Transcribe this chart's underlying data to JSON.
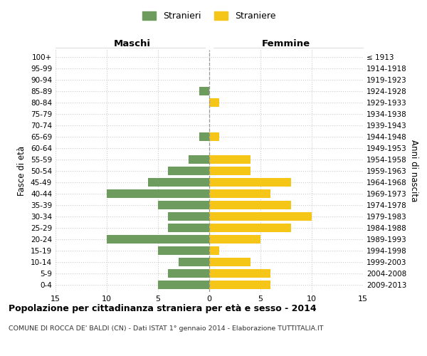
{
  "age_groups": [
    "0-4",
    "5-9",
    "10-14",
    "15-19",
    "20-24",
    "25-29",
    "30-34",
    "35-39",
    "40-44",
    "45-49",
    "50-54",
    "55-59",
    "60-64",
    "65-69",
    "70-74",
    "75-79",
    "80-84",
    "85-89",
    "90-94",
    "95-99",
    "100+"
  ],
  "birth_years": [
    "2009-2013",
    "2004-2008",
    "1999-2003",
    "1994-1998",
    "1989-1993",
    "1984-1988",
    "1979-1983",
    "1974-1978",
    "1969-1973",
    "1964-1968",
    "1959-1963",
    "1954-1958",
    "1949-1953",
    "1944-1948",
    "1939-1943",
    "1934-1938",
    "1929-1933",
    "1924-1928",
    "1919-1923",
    "1914-1918",
    "≤ 1913"
  ],
  "males": [
    5,
    4,
    3,
    5,
    10,
    4,
    4,
    5,
    10,
    6,
    4,
    2,
    0,
    1,
    0,
    0,
    0,
    1,
    0,
    0,
    0
  ],
  "females": [
    6,
    6,
    4,
    1,
    5,
    8,
    10,
    8,
    6,
    8,
    4,
    4,
    0,
    1,
    0,
    0,
    1,
    0,
    0,
    0,
    0
  ],
  "male_color": "#6e9b5e",
  "female_color": "#f5c518",
  "title": "Popolazione per cittadinanza straniera per età e sesso - 2014",
  "subtitle": "COMUNE DI ROCCA DE' BALDI (CN) - Dati ISTAT 1° gennaio 2014 - Elaborazione TUTTITALIA.IT",
  "xlabel_left": "Maschi",
  "xlabel_right": "Femmine",
  "ylabel_left": "Fasce di età",
  "ylabel_right": "Anni di nascita",
  "legend_male": "Stranieri",
  "legend_female": "Straniere",
  "xlim": 15,
  "background_color": "#ffffff",
  "grid_color": "#cccccc"
}
